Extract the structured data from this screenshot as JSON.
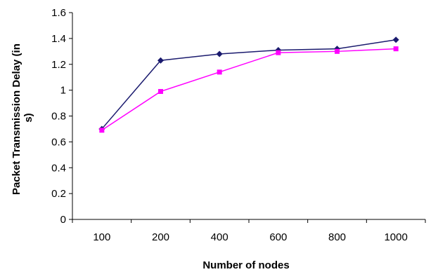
{
  "chart_data": {
    "type": "line",
    "title": "",
    "xlabel": "Number of nodes",
    "ylabel_line1": "Packet Transmission Delay (in",
    "ylabel_line2": "s)",
    "categories": [
      "100",
      "200",
      "400",
      "600",
      "800",
      "1000"
    ],
    "ylim": [
      0,
      1.6
    ],
    "yticks": [
      "0",
      "0.2",
      "0.4",
      "0.6",
      "0.8",
      "1",
      "1.2",
      "1.4",
      "1.6"
    ],
    "grid": false,
    "legend": "none",
    "series": [
      {
        "values": [
          0.7,
          1.23,
          1.28,
          1.31,
          1.32,
          1.39
        ],
        "color": "#1a1a6e",
        "marker": "diamond"
      },
      {
        "values": [
          0.69,
          0.99,
          1.14,
          1.29,
          1.3,
          1.32
        ],
        "color": "#ff00ff",
        "marker": "square"
      }
    ]
  }
}
